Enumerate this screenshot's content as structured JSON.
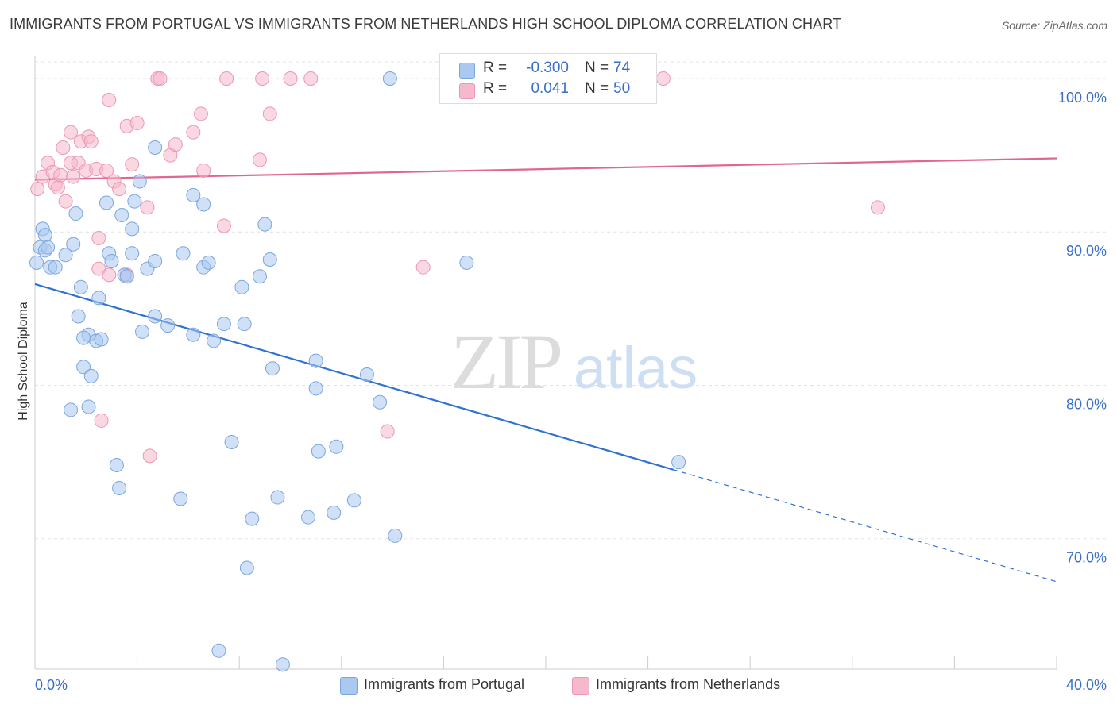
{
  "header": {
    "title": "IMMIGRANTS FROM PORTUGAL VS IMMIGRANTS FROM NETHERLANDS HIGH SCHOOL DIPLOMA CORRELATION CHART",
    "source": "Source: ZipAtlas.com"
  },
  "watermark": {
    "zip": "ZIP",
    "atlas": "atlas"
  },
  "legend_top": {
    "rows": [
      {
        "r_label": "R =",
        "r_value": "-0.300",
        "n_label": "N =",
        "n_value": "74"
      },
      {
        "r_label": "R =",
        "r_value": "0.041",
        "n_label": "N =",
        "n_value": "50"
      }
    ]
  },
  "colors": {
    "portugal_fill": "#aac8f0",
    "portugal_stroke": "#7aa6de",
    "portugal_line": "#2f72d1",
    "netherlands_fill": "#f6b8cb",
    "netherlands_stroke": "#ee96b3",
    "netherlands_line": "#e0678f",
    "tick_label": "#3a6fc9",
    "grid": "#e3e3e3"
  },
  "chart_data": {
    "type": "scatter",
    "title": "IMMIGRANTS FROM PORTUGAL VS IMMIGRANTS FROM NETHERLANDS HIGH SCHOOL DIPLOMA CORRELATION CHART",
    "xlabel": "",
    "ylabel": "High School Diploma",
    "xlim": [
      0,
      40
    ],
    "ylim": [
      61.5,
      101.5
    ],
    "x_tick_labels": [
      "0.0%",
      "40.0%"
    ],
    "y_ticks": [
      70,
      80,
      90,
      100
    ],
    "y_tick_labels": [
      "70.0%",
      "80.0%",
      "90.0%",
      "100.0%"
    ],
    "grid": true,
    "legend_position": "bottom",
    "series": [
      {
        "name": "Immigrants from Portugal",
        "color": "#aac8f0",
        "r": -0.3,
        "n": 74,
        "trend": {
          "x": [
            0,
            25.0
          ],
          "y": [
            86.6,
            74.5
          ],
          "dashed_extension": {
            "x": [
              25.0,
              40.0
            ],
            "y": [
              74.5,
              67.2
            ]
          }
        },
        "points": [
          [
            0.0,
            88.0
          ],
          [
            0.2,
            89.0
          ],
          [
            0.3,
            90.2
          ],
          [
            0.4,
            88.8
          ],
          [
            0.6,
            87.7
          ],
          [
            0.8,
            87.7
          ],
          [
            0.4,
            89.8
          ],
          [
            1.2,
            88.5
          ],
          [
            1.5,
            89.2
          ],
          [
            1.6,
            91.2
          ],
          [
            1.8,
            86.4
          ],
          [
            2.5,
            85.7
          ],
          [
            1.7,
            84.5
          ],
          [
            2.1,
            83.3
          ],
          [
            1.9,
            83.1
          ],
          [
            2.4,
            82.9
          ],
          [
            2.6,
            83.0
          ],
          [
            1.9,
            81.2
          ],
          [
            2.2,
            80.6
          ],
          [
            1.4,
            78.4
          ],
          [
            2.1,
            78.6
          ],
          [
            2.8,
            91.9
          ],
          [
            3.4,
            91.1
          ],
          [
            3.9,
            92.0
          ],
          [
            3.8,
            90.2
          ],
          [
            2.9,
            88.6
          ],
          [
            3.0,
            88.1
          ],
          [
            3.5,
            87.2
          ],
          [
            3.6,
            87.1
          ],
          [
            3.8,
            88.6
          ],
          [
            4.4,
            87.6
          ],
          [
            4.7,
            88.1
          ],
          [
            4.7,
            84.5
          ],
          [
            5.2,
            83.9
          ],
          [
            4.2,
            83.5
          ],
          [
            4.1,
            93.3
          ],
          [
            4.7,
            95.5
          ],
          [
            6.2,
            92.4
          ],
          [
            6.6,
            91.8
          ],
          [
            5.8,
            88.6
          ],
          [
            6.6,
            87.7
          ],
          [
            6.8,
            88.0
          ],
          [
            6.2,
            83.3
          ],
          [
            7.0,
            82.9
          ],
          [
            7.4,
            84.0
          ],
          [
            8.2,
            84.0
          ],
          [
            8.1,
            86.4
          ],
          [
            8.8,
            87.1
          ],
          [
            9.0,
            90.5
          ],
          [
            9.2,
            88.2
          ],
          [
            13.9,
            100.0
          ],
          [
            9.3,
            81.1
          ],
          [
            11.0,
            81.6
          ],
          [
            11.0,
            79.8
          ],
          [
            13.0,
            80.7
          ],
          [
            13.5,
            78.9
          ],
          [
            3.2,
            74.8
          ],
          [
            3.3,
            73.3
          ],
          [
            5.7,
            72.6
          ],
          [
            7.7,
            76.3
          ],
          [
            11.1,
            75.7
          ],
          [
            11.8,
            76.0
          ],
          [
            9.5,
            72.7
          ],
          [
            8.5,
            71.3
          ],
          [
            10.7,
            71.4
          ],
          [
            11.7,
            71.7
          ],
          [
            12.5,
            72.5
          ],
          [
            14.1,
            70.2
          ],
          [
            8.3,
            68.1
          ],
          [
            7.2,
            62.7
          ],
          [
            9.7,
            61.8
          ],
          [
            16.9,
            88.0
          ],
          [
            25.2,
            75.0
          ],
          [
            0.5,
            89.0
          ]
        ]
      },
      {
        "name": "Immigrants from Netherlands",
        "color": "#f6b8cb",
        "r": 0.041,
        "n": 50,
        "trend": {
          "x": [
            0,
            40.0
          ],
          "y": [
            93.4,
            94.8
          ]
        },
        "points": [
          [
            0.1,
            92.8
          ],
          [
            0.3,
            93.6
          ],
          [
            0.5,
            94.5
          ],
          [
            0.7,
            93.9
          ],
          [
            0.8,
            93.1
          ],
          [
            0.9,
            92.9
          ],
          [
            1.0,
            93.7
          ],
          [
            1.1,
            95.5
          ],
          [
            1.2,
            92.0
          ],
          [
            1.4,
            94.5
          ],
          [
            1.4,
            96.5
          ],
          [
            1.5,
            93.6
          ],
          [
            1.7,
            94.5
          ],
          [
            1.8,
            95.9
          ],
          [
            2.0,
            94.0
          ],
          [
            2.1,
            96.2
          ],
          [
            2.2,
            95.9
          ],
          [
            2.4,
            94.1
          ],
          [
            2.8,
            94.0
          ],
          [
            2.9,
            98.6
          ],
          [
            3.1,
            93.3
          ],
          [
            3.3,
            92.8
          ],
          [
            3.6,
            96.9
          ],
          [
            3.8,
            94.4
          ],
          [
            4.0,
            97.1
          ],
          [
            4.4,
            91.6
          ],
          [
            4.8,
            100.0
          ],
          [
            4.9,
            100.0
          ],
          [
            5.3,
            95.0
          ],
          [
            5.5,
            95.7
          ],
          [
            6.2,
            96.5
          ],
          [
            6.5,
            97.7
          ],
          [
            6.6,
            94.0
          ],
          [
            7.5,
            100.0
          ],
          [
            8.8,
            94.7
          ],
          [
            8.9,
            100.0
          ],
          [
            9.2,
            97.7
          ],
          [
            10.0,
            100.0
          ],
          [
            10.8,
            100.0
          ],
          [
            7.4,
            90.4
          ],
          [
            2.5,
            89.6
          ],
          [
            2.5,
            87.6
          ],
          [
            2.9,
            87.2
          ],
          [
            3.6,
            87.2
          ],
          [
            2.6,
            77.7
          ],
          [
            4.5,
            75.4
          ],
          [
            13.8,
            77.0
          ],
          [
            15.2,
            87.7
          ],
          [
            24.6,
            100.0
          ],
          [
            33.0,
            91.6
          ]
        ]
      }
    ]
  },
  "legend_bottom": {
    "items": [
      {
        "label": "Immigrants from Portugal"
      },
      {
        "label": "Immigrants from Netherlands"
      }
    ]
  }
}
